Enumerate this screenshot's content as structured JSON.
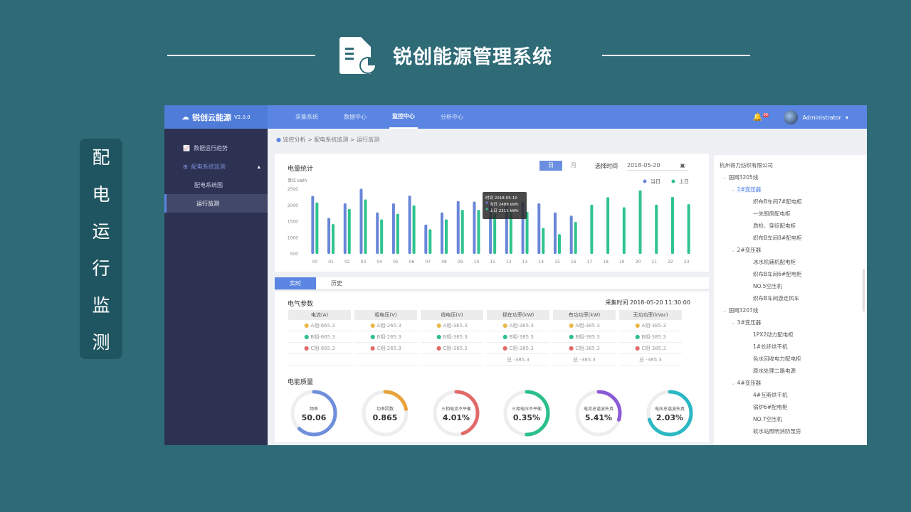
{
  "slide": {
    "title": "锐创能源管理系统",
    "side_label": [
      "配",
      "电",
      "运",
      "行",
      "监",
      "测"
    ]
  },
  "app": {
    "logo": "锐创云能源",
    "version": "V2.0.0",
    "nav": [
      "采集系统",
      "数据中心",
      "监控中心",
      "分析中心"
    ],
    "nav_active": 2,
    "notification_count": "99",
    "user": "Administrator",
    "sidebar": [
      {
        "label": "数据运行趋势",
        "level": 0
      },
      {
        "label": "配电系统监测",
        "level": 0
      },
      {
        "label": "配电系统图",
        "level": 1
      },
      {
        "label": "运行监测",
        "level": 1,
        "active": true
      }
    ],
    "breadcrumb": "监控分析 > 配电系统监测 > 运行监测",
    "energy": {
      "title": "电量统计",
      "btn_day": "日",
      "btn_month": "月",
      "date_label": "选择时间",
      "date_value": "2018-05-20",
      "tooltip": {
        "time": "时间 2018-05-10",
        "today": "当日 2489 kWh",
        "yesterday": "上日 2211 kWh"
      }
    },
    "tabs": [
      "实时",
      "历史"
    ],
    "params": {
      "title": "电气参数",
      "time": "采集时间  2018-05-20  11:30:00",
      "columns": [
        {
          "header": "电流(A)",
          "rows": [
            "A相-665.3",
            "B相-665.3",
            "C相-665.3"
          ],
          "total": ""
        },
        {
          "header": "相电压(V)",
          "rows": [
            "A相-265.3",
            "B相-265.3",
            "C相-265.3"
          ],
          "total": ""
        },
        {
          "header": "线电压(V)",
          "rows": [
            "A相-365.3",
            "B相-365.3",
            "C相-365.3"
          ],
          "total": ""
        },
        {
          "header": "视在功率(kW)",
          "rows": [
            "A相-385.3",
            "B相-385.3",
            "C相-385.3"
          ],
          "total": "总 -385.3"
        },
        {
          "header": "有功功率(kW)",
          "rows": [
            "A相-385.3",
            "B相-385.3",
            "C相-385.3"
          ],
          "total": "总 -385.3"
        },
        {
          "header": "无功功率(kVar)",
          "rows": [
            "A相-385.3",
            "B相-385.3",
            "C相-385.3"
          ],
          "total": "总 -385.3"
        }
      ],
      "phase_colors": [
        "#e8b84a",
        "#2fbf8f",
        "#e06a6a"
      ]
    },
    "quality": {
      "title": "电能质量",
      "gauges": [
        {
          "label": "频率",
          "value": "50.06",
          "fill": 0.62,
          "color": "#6f8fdc"
        },
        {
          "label": "功率因数",
          "value": "0.865",
          "fill": 0.22,
          "color": "#e9a23b"
        },
        {
          "label": "三相电流不平衡",
          "value": "4.01%",
          "fill": 0.45,
          "color": "#e26a6a"
        },
        {
          "label": "三相电压不平衡",
          "value": "0.35%",
          "fill": 0.5,
          "color": "#2bbf8a"
        },
        {
          "label": "电流总谐波失真",
          "value": "5.41%",
          "fill": 0.3,
          "color": "#8b5ad6"
        },
        {
          "label": "电压总谐波失真",
          "value": "2.03%",
          "fill": 0.7,
          "color": "#2bb8c4"
        }
      ]
    },
    "tree": [
      {
        "label": "杭州得力纺织有限公司",
        "level": 0
      },
      {
        "label": "国网3205线",
        "level": 1
      },
      {
        "label": "1#变压器",
        "level": 2,
        "selected": true
      },
      {
        "label": "织布B车间7#配电柜",
        "level": 3
      },
      {
        "label": "一关厨房配电柜",
        "level": 3
      },
      {
        "label": "质检、穿综配电柜",
        "level": 3
      },
      {
        "label": "织布B车间8#配电柜",
        "level": 3
      },
      {
        "label": "2#变压器",
        "level": 2
      },
      {
        "label": "冰水机辅机配电柜",
        "level": 3
      },
      {
        "label": "织布B车间6#配电柜",
        "level": 3
      },
      {
        "label": "NO.5空压机",
        "level": 3
      },
      {
        "label": "织布B车间游走风车",
        "level": 3
      },
      {
        "label": "国网3207线",
        "level": 1
      },
      {
        "label": "3#变压器",
        "level": 2
      },
      {
        "label": "1PX2动力配电柜",
        "level": 3
      },
      {
        "label": "1#长纤烘干机",
        "level": 3
      },
      {
        "label": "色水回收电力配电柜",
        "level": 3
      },
      {
        "label": "原水处理二路电源",
        "level": 3
      },
      {
        "label": "4#变压器",
        "level": 2
      },
      {
        "label": "4#互斯烘干机",
        "level": 3
      },
      {
        "label": "锅炉6#配电柜",
        "level": 3
      },
      {
        "label": "NO.7空压机",
        "level": 3
      },
      {
        "label": "软水站照明消防泵房",
        "level": 3
      }
    ]
  },
  "chart_data": {
    "type": "bar",
    "unit_label": "单位  kWh",
    "ylim": [
      500,
      2500
    ],
    "yticks": [
      500,
      1000,
      1500,
      2000,
      2500
    ],
    "categories": [
      "00",
      "01",
      "02",
      "03",
      "04",
      "05",
      "06",
      "07",
      "08",
      "09",
      "10",
      "11",
      "12",
      "13",
      "14",
      "15",
      "16",
      "17",
      "18",
      "19",
      "20",
      "21",
      "22",
      "23"
    ],
    "series": [
      {
        "name": "当日",
        "color": "#6a86d8",
        "values": [
          2290,
          1610,
          2060,
          2510,
          1780,
          2060,
          2300,
          1405,
          1780,
          2130,
          2115,
          2100,
          2000,
          2100,
          2060,
          1780,
          1680,
          null,
          null,
          null,
          null,
          null,
          null,
          null
        ]
      },
      {
        "name": "上日",
        "color": "#2fc38e",
        "values": [
          2087,
          1420,
          1885,
          2180,
          1565,
          1740,
          2000,
          1260,
          1565,
          1860,
          1860,
          1750,
          1800,
          1800,
          1300,
          1110,
          1485,
          2020,
          2250,
          1940,
          2465,
          2020,
          2260,
          2035
        ]
      }
    ],
    "legend": "top-right",
    "grid": false
  }
}
